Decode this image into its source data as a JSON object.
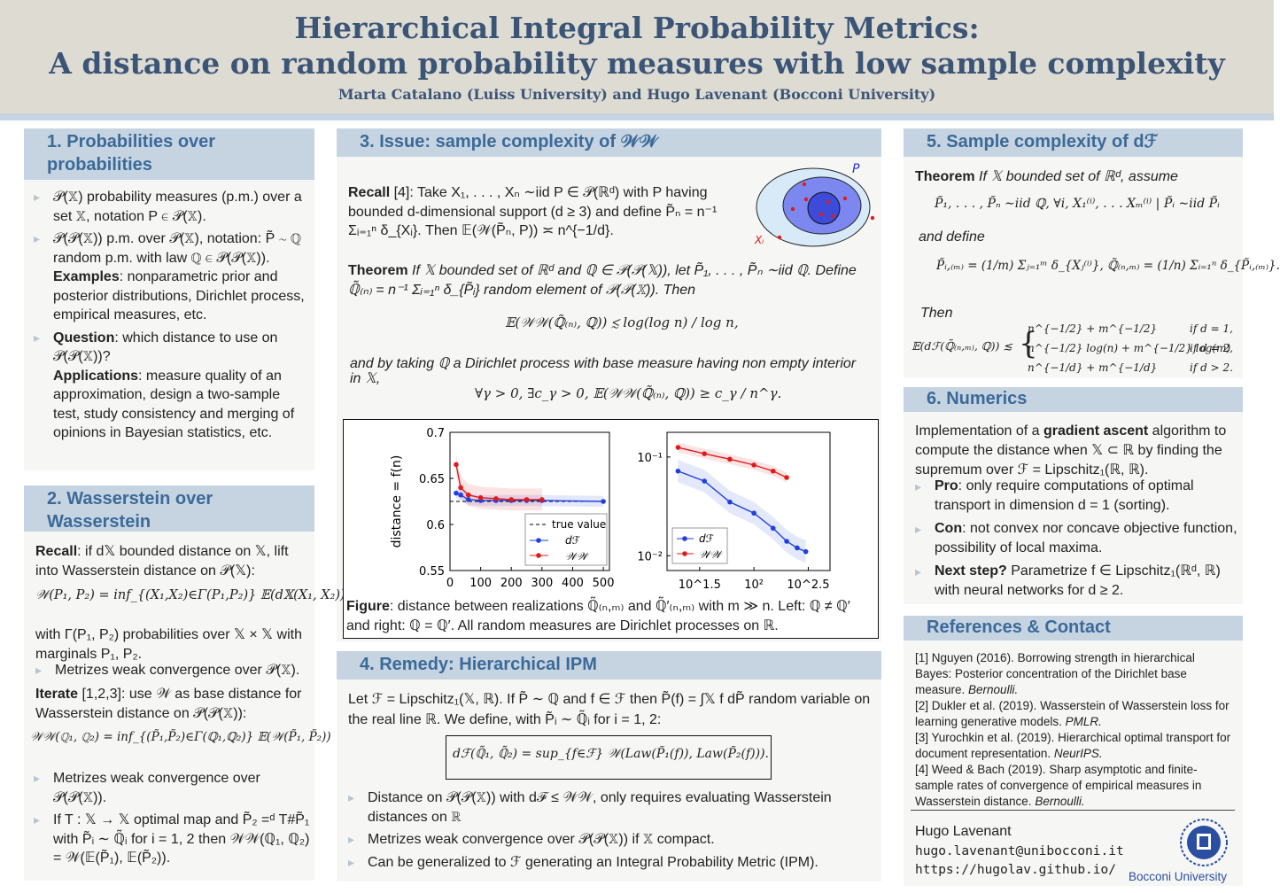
{
  "header": {
    "title_line1": "Hierarchical Integral Probability Metrics:",
    "title_line2": "A distance on random probability measures with low sample complexity",
    "authors": "Marta Catalano (Luiss University) and Hugo Lavenant (Bocconi University)"
  },
  "s1": {
    "title": "1. Probabilities over probabilities",
    "b1": "𝒫(𝕏) probability measures (p.m.) over a set 𝕏, notation P ∈ 𝒫(𝕏).",
    "b2": "𝒫(𝒫(𝕏)) p.m. over 𝒫(𝕏), notation: P̃ ∼ ℚ random p.m. with law ℚ ∈ 𝒫(𝒫(𝕏)).",
    "examples_label": "Examples",
    "examples_text": ": nonparametric prior and posterior distributions, Dirichlet process, empirical measures, etc.",
    "question_label": "Question",
    "question_text": ": which distance to use on 𝒫(𝒫(𝕏))?",
    "applications_label": "Applications",
    "applications_text": ": measure quality of an approximation, design a two-sample test, study consistency and merging of opinions in Bayesian statistics, etc."
  },
  "s2": {
    "title": "2. Wasserstein over Wasserstein",
    "recall_label": "Recall",
    "recall_text": ": if d𝕏 bounded distance on 𝕏, lift into Wasserstein distance on 𝒫(𝕏):",
    "formula1": "𝒲(P₁, P₂) = inf_{(X₁,X₂)∈Γ(P₁,P₂)} 𝔼(d𝕏(X₁, X₂)),",
    "gamma_text": "with Γ(P₁, P₂) probabilities over 𝕏 × 𝕏 with marginals P₁, P₂.",
    "b1": "Metrizes weak convergence over 𝒫(𝕏).",
    "iterate_label": "Iterate",
    "iterate_text": " [1,2,3]: use 𝒲 as base distance for Wasserstein distance on 𝒫(𝒫(𝕏)):",
    "formula2": "𝒲𝒲(ℚ₁, ℚ₂) = inf_{(P̃₁,P̃₂)∈Γ(ℚ₁,ℚ₂)} 𝔼(𝒲(P̃₁, P̃₂))",
    "b2": "Metrizes weak convergence over 𝒫(𝒫(𝕏)).",
    "b3": "If T : 𝕏 → 𝕏 optimal map and P̃₂ =ᵈ T#P̃₁ with P̃ᵢ ∼ ℚ̃ᵢ for i = 1, 2 then 𝒲𝒲(ℚ₁, ℚ₂) = 𝒲(𝔼(P̃₁), 𝔼(P̃₂))."
  },
  "s3": {
    "title": "3. Issue: sample complexity of 𝒲𝒲",
    "recall_label": "Recall",
    "recall_text": " [4]: Take X₁, . . . , Xₙ ∼iid P ∈ 𝒫(ℝᵈ) with P having bounded d-dimensional support (d ≥ 3) and define P̃ₙ = n⁻¹ Σᵢ₌₁ⁿ δ_{Xᵢ}. Then 𝔼(𝒲(P̃ₙ, P)) ≍ n^{−1/d}.",
    "theorem_label": "Theorem",
    "theorem_text": " If 𝕏 bounded set of ℝᵈ and ℚ ∈ 𝒫(𝒫(𝕏)), let P̃₁, . . . , P̃ₙ ∼iid ℚ. Define ℚ̃₍ₙ₎ = n⁻¹ Σᵢ₌₁ⁿ δ_{P̃ᵢ} random element of 𝒫(𝒫(𝕏)). Then",
    "formula1": "𝔼(𝒲𝒲(ℚ̃₍ₙ₎, ℚ)) ≲ log(log n) / log n,",
    "dirichlet_text": "and by taking ℚ a Dirichlet process with base measure having non empty interior in 𝕏,",
    "formula2": "∀γ > 0,  ∃c_γ > 0,  𝔼(𝒲𝒲(ℚ̃₍ₙ₎, ℚ)) ≥ c_γ / n^γ.",
    "diagram": {
      "P_label": "P",
      "Xi_label": "Xᵢ"
    },
    "figure_label": "Figure",
    "figure_text": ": distance between realizations ℚ̃₍ₙ,ₘ₎ and ℚ̃′₍ₙ,ₘ₎ with m ≫ n. Left: ℚ ≠ ℚ′ and right: ℚ = ℚ′. All random measures are Dirichlet processes on ℝ."
  },
  "s4": {
    "title": "4. Remedy: Hierarchical IPM",
    "intro": "Let ℱ = Lipschitz₁(𝕏, ℝ). If P̃ ∼ ℚ and f ∈ ℱ then P̃(f) = ∫𝕏 f dP̃ random variable on the real line ℝ. We define, with P̃ᵢ ∼ ℚ̃ᵢ for i = 1, 2:",
    "formula": "dℱ(ℚ̃₁, ℚ̃₂) = sup_{f∈ℱ} 𝒲(Law(P̃₁(f)), Law(P̃₂(f))).",
    "b1": "Distance on 𝒫(𝒫(𝕏)) with dℱ ≤ 𝒲𝒲, only requires evaluating Wasserstein distances on ℝ",
    "b2": "Metrizes weak convergence over 𝒫(𝒫(𝕏)) if 𝕏 compact.",
    "b3": "Can be generalized to ℱ generating an Integral Probability Metric (IPM)."
  },
  "s5": {
    "title": "5. Sample complexity of dℱ",
    "theorem_label": "Theorem",
    "theorem_text": " If 𝕏 bounded set of ℝᵈ, assume",
    "assume": "P̃₁, . . . , P̃ₙ ∼iid ℚ,   ∀i, X₁⁽ⁱ⁾, . . . Xₘ⁽ⁱ⁾ | P̃ᵢ ∼iid P̃ᵢ",
    "and_define": "and define",
    "defs": "P̃ᵢ,₍ₘ₎ = (1/m) Σⱼ₌₁ᵐ δ_{Xⱼ⁽ⁱ⁾},   ℚ̃₍ₙ,ₘ₎ = (1/n) Σᵢ₌₁ⁿ δ_{P̃ᵢ,₍ₘ₎}.",
    "then": "Then",
    "lhs": "𝔼(dℱ(ℚ̃₍ₙ,ₘ₎, ℚ)) ≲",
    "cases": [
      {
        "expr": "n^{−1/2} + m^{−1/2}",
        "cond": "if d = 1,"
      },
      {
        "expr": "n^{−1/2} log(n) + m^{−1/2} log(m)",
        "cond": "if d = 2,"
      },
      {
        "expr": "n^{−1/d} + m^{−1/d}",
        "cond": "if d > 2."
      }
    ]
  },
  "s6": {
    "title": "6. Numerics",
    "intro_pre": "Implementation of a ",
    "intro_bold": "gradient ascent",
    "intro_post": " algorithm to compute the distance when 𝕏 ⊂ ℝ by finding the supremum over ℱ = Lipschitz₁(ℝ, ℝ).",
    "pro_label": "Pro",
    "pro_text": ": only require computations of optimal transport in dimension d = 1 (sorting).",
    "con_label": "Con",
    "con_text": ": not convex nor concave objective function, possibility of local maxima.",
    "next_label": "Next step?",
    "next_text": " Parametrize f ∈ Lipschitz₁(ℝᵈ, ℝ) with neural networks for d ≥ 2."
  },
  "refs": {
    "title": "References & Contact",
    "r1": "[1] Nguyen (2016). Borrowing strength in hierarchical Bayes: Posterior concentration of the Dirichlet base measure. ",
    "r1i": "Bernoulli.",
    "r2": "[2] Dukler et al. (2019). Wasserstein of Wasserstein loss for learning generative models. ",
    "r2i": "PMLR.",
    "r3": "[3] Yurochkin et al. (2019). Hierarchical optimal transport for document representation. ",
    "r3i": "NeurIPS.",
    "r4": "[4] Weed & Bach (2019). Sharp asymptotic and finite-sample rates of convergence of empirical measures in Wasserstein distance. ",
    "r4i": "Bernoulli.",
    "contact_name": "Hugo Lavenant",
    "contact_email": "hugo.lavenant@unibocconi.it",
    "contact_web": "https://hugolav.github.io/",
    "logo_text": "Bocconi University"
  },
  "colors": {
    "title": "#3b5577",
    "section_head": "#c6d4e2",
    "section_text": "#3b6a98",
    "blue_series": "#1f3fe0",
    "red_series": "#e01b1b"
  },
  "chart_data": [
    {
      "type": "line",
      "ylabel": "distance = f(n)",
      "xlim": [
        0,
        520
      ],
      "ylim": [
        0.55,
        0.7
      ],
      "xticks": [
        "0",
        "100",
        "200",
        "300",
        "400",
        "500"
      ],
      "yticks": [
        "0.55",
        "0.6",
        "0.65",
        "0.7"
      ],
      "legend": "lower-right",
      "series": [
        {
          "name": "true value",
          "x": [
            0,
            500
          ],
          "values": [
            0.625,
            0.625
          ]
        },
        {
          "name": "dℱ",
          "x": [
            20,
            35,
            60,
            100,
            150,
            200,
            250,
            300,
            500
          ],
          "values": [
            0.634,
            0.632,
            0.627,
            0.626,
            0.626,
            0.626,
            0.626,
            0.626,
            0.625
          ]
        },
        {
          "name": "𝒲𝒲",
          "x": [
            20,
            35,
            60,
            100,
            150,
            200,
            250,
            300
          ],
          "values": [
            0.665,
            0.64,
            0.632,
            0.629,
            0.628,
            0.627,
            0.627,
            0.627
          ]
        }
      ]
    },
    {
      "type": "line",
      "log_scale": true,
      "yticks": [
        "10⁻¹",
        "10⁻²"
      ],
      "xticks": [
        "10^1.5",
        "10²",
        "10^2.5"
      ],
      "legend": "lower-left",
      "series": [
        {
          "name": "dℱ",
          "x": [
            20,
            35,
            60,
            100,
            150,
            200,
            250,
            300
          ],
          "values": [
            0.072,
            0.057,
            0.035,
            0.027,
            0.019,
            0.014,
            0.012,
            0.011
          ]
        },
        {
          "name": "𝒲𝒲",
          "x": [
            20,
            35,
            60,
            100,
            150,
            200
          ],
          "values": [
            0.125,
            0.108,
            0.095,
            0.083,
            0.072,
            0.062
          ]
        }
      ]
    }
  ]
}
